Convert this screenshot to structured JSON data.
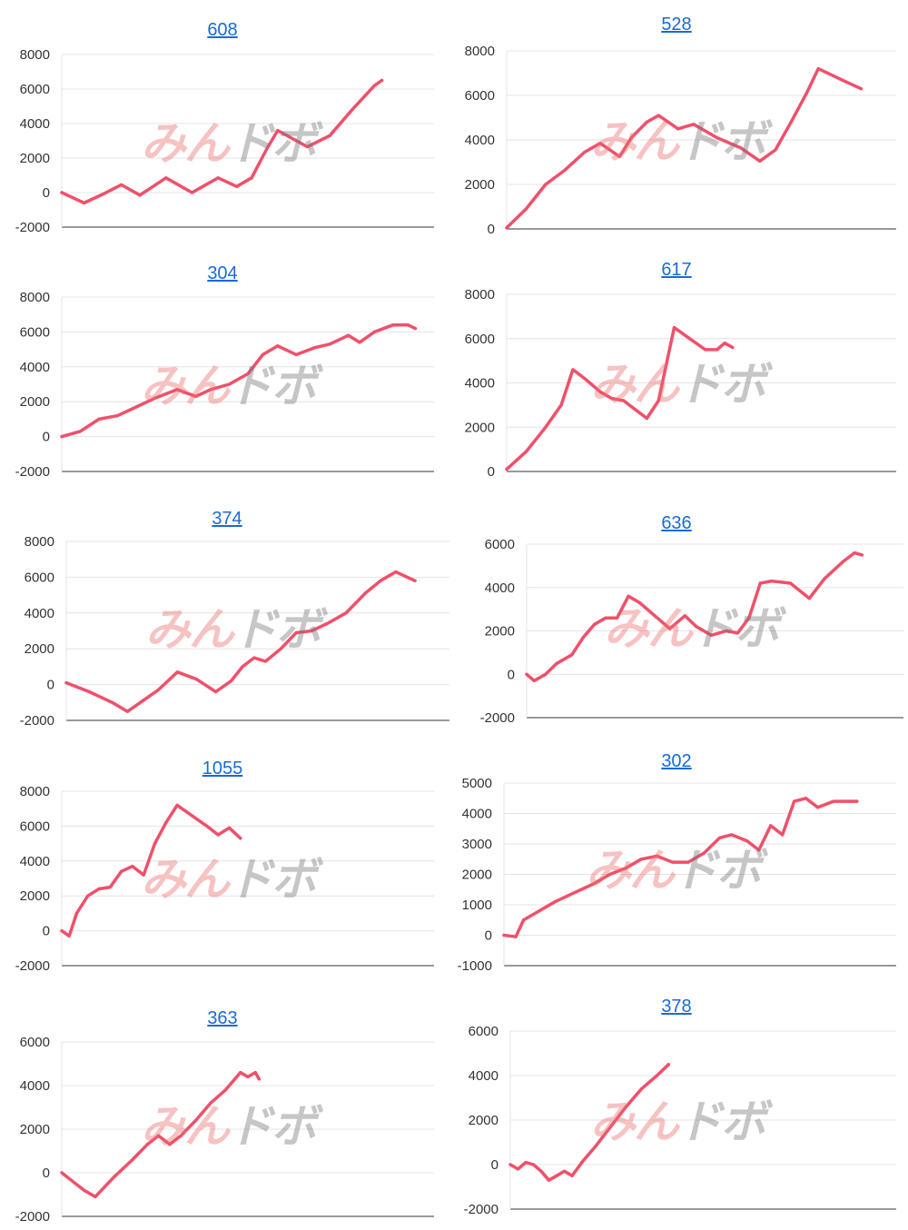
{
  "watermark": {
    "part1": "みん",
    "part2": "ドボ"
  },
  "colors": {
    "line": "#f0506a",
    "title": "#1a6ad6"
  },
  "chart_data": [
    {
      "type": "line",
      "title": "608",
      "yticks": [
        -2000,
        0,
        2000,
        4000,
        6000,
        8000
      ],
      "ylim": [
        -2000,
        8000
      ],
      "points": [
        [
          0,
          0
        ],
        [
          0.06,
          -600
        ],
        [
          0.11,
          -100
        ],
        [
          0.16,
          450
        ],
        [
          0.21,
          -150
        ],
        [
          0.28,
          850
        ],
        [
          0.35,
          0
        ],
        [
          0.42,
          850
        ],
        [
          0.47,
          350
        ],
        [
          0.51,
          850
        ],
        [
          0.55,
          2500
        ],
        [
          0.58,
          3600
        ],
        [
          0.66,
          2650
        ],
        [
          0.72,
          3300
        ],
        [
          0.78,
          4800
        ],
        [
          0.84,
          6200
        ],
        [
          0.86,
          6500
        ]
      ]
    },
    {
      "type": "line",
      "title": "528",
      "yticks": [
        0,
        2000,
        4000,
        6000,
        8000
      ],
      "ylim": [
        0,
        8000
      ],
      "points": [
        [
          0,
          50
        ],
        [
          0.05,
          900
        ],
        [
          0.1,
          2000
        ],
        [
          0.15,
          2650
        ],
        [
          0.2,
          3450
        ],
        [
          0.24,
          3850
        ],
        [
          0.29,
          3250
        ],
        [
          0.32,
          4100
        ],
        [
          0.36,
          4800
        ],
        [
          0.39,
          5100
        ],
        [
          0.44,
          4500
        ],
        [
          0.48,
          4700
        ],
        [
          0.54,
          4100
        ],
        [
          0.6,
          3650
        ],
        [
          0.65,
          3050
        ],
        [
          0.69,
          3550
        ],
        [
          0.73,
          4800
        ],
        [
          0.77,
          6100
        ],
        [
          0.8,
          7200
        ],
        [
          0.86,
          6700
        ],
        [
          0.91,
          6300
        ]
      ]
    },
    {
      "type": "line",
      "title": "304",
      "yticks": [
        -2000,
        0,
        2000,
        4000,
        6000,
        8000
      ],
      "ylim": [
        -2000,
        8000
      ],
      "points": [
        [
          0,
          0
        ],
        [
          0.05,
          300
        ],
        [
          0.1,
          1000
        ],
        [
          0.15,
          1200
        ],
        [
          0.2,
          1700
        ],
        [
          0.25,
          2200
        ],
        [
          0.31,
          2700
        ],
        [
          0.36,
          2300
        ],
        [
          0.4,
          2700
        ],
        [
          0.45,
          3000
        ],
        [
          0.5,
          3600
        ],
        [
          0.54,
          4700
        ],
        [
          0.58,
          5200
        ],
        [
          0.63,
          4700
        ],
        [
          0.68,
          5100
        ],
        [
          0.72,
          5300
        ],
        [
          0.77,
          5800
        ],
        [
          0.8,
          5400
        ],
        [
          0.84,
          6000
        ],
        [
          0.89,
          6400
        ],
        [
          0.93,
          6400
        ],
        [
          0.95,
          6200
        ]
      ]
    },
    {
      "type": "line",
      "title": "617",
      "yticks": [
        0,
        2000,
        4000,
        6000,
        8000
      ],
      "ylim": [
        0,
        8000
      ],
      "points": [
        [
          0,
          100
        ],
        [
          0.05,
          900
        ],
        [
          0.1,
          2000
        ],
        [
          0.14,
          3000
        ],
        [
          0.17,
          4600
        ],
        [
          0.2,
          4200
        ],
        [
          0.24,
          3600
        ],
        [
          0.27,
          3300
        ],
        [
          0.3,
          3200
        ],
        [
          0.33,
          2800
        ],
        [
          0.36,
          2400
        ],
        [
          0.39,
          3200
        ],
        [
          0.43,
          6500
        ],
        [
          0.47,
          6000
        ],
        [
          0.51,
          5500
        ],
        [
          0.54,
          5500
        ],
        [
          0.56,
          5800
        ],
        [
          0.58,
          5600
        ]
      ]
    },
    {
      "type": "line",
      "title": "374",
      "yticks": [
        -2000,
        0,
        2000,
        4000,
        6000,
        8000
      ],
      "ylim": [
        -2000,
        8000
      ],
      "points": [
        [
          0,
          100
        ],
        [
          0.06,
          -400
        ],
        [
          0.12,
          -1000
        ],
        [
          0.16,
          -1500
        ],
        [
          0.2,
          -900
        ],
        [
          0.24,
          -300
        ],
        [
          0.29,
          700
        ],
        [
          0.34,
          300
        ],
        [
          0.39,
          -400
        ],
        [
          0.43,
          200
        ],
        [
          0.46,
          1000
        ],
        [
          0.49,
          1500
        ],
        [
          0.52,
          1300
        ],
        [
          0.56,
          2000
        ],
        [
          0.6,
          2900
        ],
        [
          0.64,
          3000
        ],
        [
          0.68,
          3400
        ],
        [
          0.73,
          4000
        ],
        [
          0.78,
          5100
        ],
        [
          0.82,
          5800
        ],
        [
          0.86,
          6300
        ],
        [
          0.89,
          6000
        ],
        [
          0.91,
          5800
        ]
      ]
    },
    {
      "type": "line",
      "title": "636",
      "yticks": [
        -2000,
        0,
        2000,
        4000,
        6000
      ],
      "ylim": [
        -2000,
        6000
      ],
      "points": [
        [
          0,
          0
        ],
        [
          0.02,
          -300
        ],
        [
          0.05,
          0
        ],
        [
          0.08,
          500
        ],
        [
          0.12,
          900
        ],
        [
          0.15,
          1700
        ],
        [
          0.18,
          2300
        ],
        [
          0.21,
          2600
        ],
        [
          0.24,
          2600
        ],
        [
          0.27,
          3600
        ],
        [
          0.3,
          3300
        ],
        [
          0.34,
          2700
        ],
        [
          0.38,
          2100
        ],
        [
          0.42,
          2700
        ],
        [
          0.45,
          2200
        ],
        [
          0.49,
          1800
        ],
        [
          0.53,
          2000
        ],
        [
          0.56,
          1900
        ],
        [
          0.59,
          2600
        ],
        [
          0.62,
          4200
        ],
        [
          0.65,
          4300
        ],
        [
          0.7,
          4200
        ],
        [
          0.75,
          3500
        ],
        [
          0.79,
          4400
        ],
        [
          0.84,
          5200
        ],
        [
          0.87,
          5600
        ],
        [
          0.89,
          5500
        ]
      ]
    },
    {
      "type": "line",
      "title": "1055",
      "yticks": [
        -2000,
        0,
        2000,
        4000,
        6000,
        8000
      ],
      "ylim": [
        -2000,
        8000
      ],
      "points": [
        [
          0,
          0
        ],
        [
          0.02,
          -300
        ],
        [
          0.04,
          1000
        ],
        [
          0.07,
          2000
        ],
        [
          0.1,
          2400
        ],
        [
          0.13,
          2500
        ],
        [
          0.16,
          3400
        ],
        [
          0.19,
          3700
        ],
        [
          0.22,
          3200
        ],
        [
          0.25,
          5000
        ],
        [
          0.28,
          6200
        ],
        [
          0.31,
          7200
        ],
        [
          0.35,
          6600
        ],
        [
          0.39,
          6000
        ],
        [
          0.42,
          5500
        ],
        [
          0.45,
          5900
        ],
        [
          0.48,
          5300
        ]
      ]
    },
    {
      "type": "line",
      "title": "302",
      "yticks": [
        -1000,
        0,
        1000,
        2000,
        3000,
        4000,
        5000
      ],
      "ylim": [
        -1000,
        5000
      ],
      "points": [
        [
          0,
          0
        ],
        [
          0.03,
          -50
        ],
        [
          0.05,
          500
        ],
        [
          0.09,
          800
        ],
        [
          0.13,
          1100
        ],
        [
          0.18,
          1400
        ],
        [
          0.23,
          1700
        ],
        [
          0.27,
          2000
        ],
        [
          0.31,
          2200
        ],
        [
          0.35,
          2500
        ],
        [
          0.39,
          2600
        ],
        [
          0.43,
          2400
        ],
        [
          0.47,
          2400
        ],
        [
          0.51,
          2700
        ],
        [
          0.55,
          3200
        ],
        [
          0.58,
          3300
        ],
        [
          0.62,
          3100
        ],
        [
          0.65,
          2800
        ],
        [
          0.68,
          3600
        ],
        [
          0.71,
          3300
        ],
        [
          0.74,
          4400
        ],
        [
          0.77,
          4500
        ],
        [
          0.8,
          4200
        ],
        [
          0.84,
          4400
        ],
        [
          0.88,
          4400
        ],
        [
          0.9,
          4400
        ]
      ]
    },
    {
      "type": "line",
      "title": "363",
      "yticks": [
        -2000,
        0,
        2000,
        4000,
        6000
      ],
      "ylim": [
        -2000,
        6000
      ],
      "points": [
        [
          0,
          0
        ],
        [
          0.06,
          -800
        ],
        [
          0.09,
          -1100
        ],
        [
          0.14,
          -200
        ],
        [
          0.19,
          600
        ],
        [
          0.23,
          1300
        ],
        [
          0.26,
          1700
        ],
        [
          0.29,
          1300
        ],
        [
          0.32,
          1700
        ],
        [
          0.36,
          2400
        ],
        [
          0.4,
          3200
        ],
        [
          0.44,
          3800
        ],
        [
          0.48,
          4600
        ],
        [
          0.5,
          4400
        ],
        [
          0.52,
          4600
        ],
        [
          0.53,
          4300
        ]
      ]
    },
    {
      "type": "line",
      "title": "378",
      "yticks": [
        -2000,
        0,
        2000,
        4000,
        6000
      ],
      "ylim": [
        -2000,
        6000
      ],
      "points": [
        [
          0,
          0
        ],
        [
          0.02,
          -200
        ],
        [
          0.04,
          100
        ],
        [
          0.06,
          0
        ],
        [
          0.08,
          -300
        ],
        [
          0.1,
          -700
        ],
        [
          0.12,
          -500
        ],
        [
          0.14,
          -300
        ],
        [
          0.16,
          -500
        ],
        [
          0.19,
          200
        ],
        [
          0.22,
          800
        ],
        [
          0.26,
          1700
        ],
        [
          0.3,
          2600
        ],
        [
          0.34,
          3400
        ],
        [
          0.38,
          4000
        ],
        [
          0.41,
          4500
        ]
      ]
    }
  ]
}
